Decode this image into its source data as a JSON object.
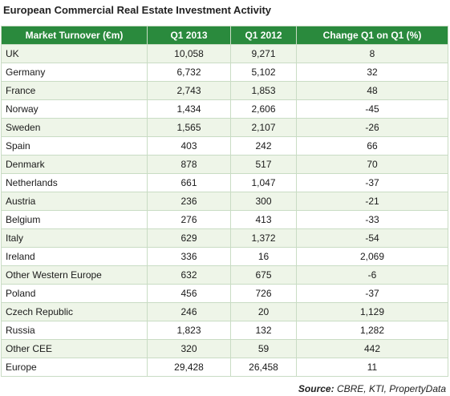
{
  "title": "European Commercial Real Estate Investment Activity",
  "table": {
    "headers": [
      "Market Turnover (€m)",
      "Q1 2013",
      "Q1 2012",
      "Change Q1 on Q1 (%)"
    ],
    "rows": [
      {
        "market": "UK",
        "q1_2013": "10,058",
        "q1_2012": "9,271",
        "change": "8"
      },
      {
        "market": "Germany",
        "q1_2013": "6,732",
        "q1_2012": "5,102",
        "change": "32"
      },
      {
        "market": "France",
        "q1_2013": "2,743",
        "q1_2012": "1,853",
        "change": "48"
      },
      {
        "market": "Norway",
        "q1_2013": "1,434",
        "q1_2012": "2,606",
        "change": "-45"
      },
      {
        "market": "Sweden",
        "q1_2013": "1,565",
        "q1_2012": "2,107",
        "change": "-26"
      },
      {
        "market": "Spain",
        "q1_2013": "403",
        "q1_2012": "242",
        "change": "66"
      },
      {
        "market": "Denmark",
        "q1_2013": "878",
        "q1_2012": "517",
        "change": "70"
      },
      {
        "market": "Netherlands",
        "q1_2013": "661",
        "q1_2012": "1,047",
        "change": "-37"
      },
      {
        "market": "Austria",
        "q1_2013": "236",
        "q1_2012": "300",
        "change": "-21"
      },
      {
        "market": "Belgium",
        "q1_2013": "276",
        "q1_2012": "413",
        "change": "-33"
      },
      {
        "market": "Italy",
        "q1_2013": "629",
        "q1_2012": "1,372",
        "change": "-54"
      },
      {
        "market": "Ireland",
        "q1_2013": "336",
        "q1_2012": "16",
        "change": "2,069"
      },
      {
        "market": "Other Western Europe",
        "q1_2013": "632",
        "q1_2012": "675",
        "change": "-6"
      },
      {
        "market": "Poland",
        "q1_2013": "456",
        "q1_2012": "726",
        "change": "-37"
      },
      {
        "market": "Czech Republic",
        "q1_2013": "246",
        "q1_2012": "20",
        "change": "1,129"
      },
      {
        "market": "Russia",
        "q1_2013": "1,823",
        "q1_2012": "132",
        "change": "1,282"
      },
      {
        "market": "Other CEE",
        "q1_2013": "320",
        "q1_2012": "59",
        "change": "442"
      },
      {
        "market": "Europe",
        "q1_2013": "29,428",
        "q1_2012": "26,458",
        "change": "11"
      }
    ]
  },
  "source": {
    "label": "Source:",
    "text": "CBRE, KTI, PropertyData"
  },
  "colors": {
    "header_bg": "#2a8a3d",
    "header_text": "#ffffff",
    "row_alt_bg": "#eef5e8",
    "border": "#c9dcc4"
  }
}
